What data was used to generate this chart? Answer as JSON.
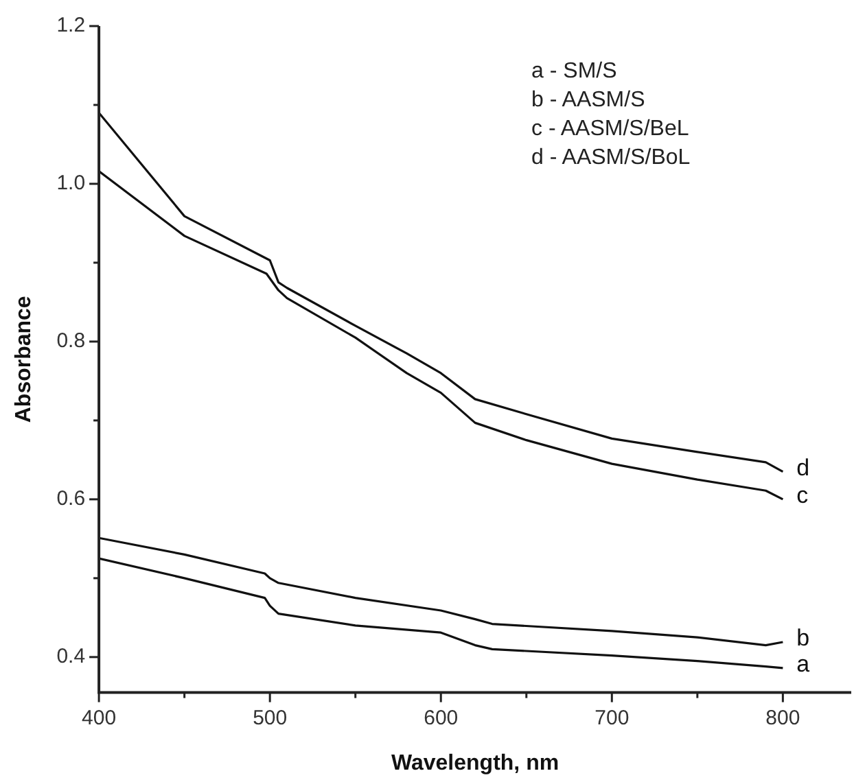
{
  "chart_data": {
    "type": "line",
    "xlabel": "Wavelength, nm",
    "ylabel": "Absorbance",
    "xlim": [
      400,
      840
    ],
    "xticks": [
      400,
      {
        "value": 450,
        "label": null
      },
      500,
      {
        "value": 550,
        "label": null
      },
      600,
      {
        "value": 650,
        "label": null
      },
      700,
      {
        "value": 750,
        "label": null
      },
      800
    ],
    "ylim": [
      0.355,
      1.2
    ],
    "yticks": [
      0.4,
      {
        "value": 0.5,
        "label": null
      },
      0.6,
      {
        "value": 0.7,
        "label": null
      },
      0.8,
      {
        "value": 0.9,
        "label": null
      },
      {
        "value": 1,
        "label": "1.0"
      },
      {
        "value": 1.1,
        "label": null
      },
      1.2
    ],
    "grid": false,
    "marker": "none",
    "line_style": "solid",
    "series": [
      {
        "name": "a",
        "color": "#111111",
        "x": [
          400,
          450,
          497,
          500,
          505,
          550,
          600,
          620,
          630,
          700,
          750,
          790,
          800
        ],
        "values": [
          0.525,
          0.5,
          0.475,
          0.465,
          0.455,
          0.44,
          0.431,
          0.415,
          0.41,
          0.402,
          0.395,
          0.388,
          0.386
        ]
      },
      {
        "name": "b",
        "color": "#111111",
        "x": [
          400,
          450,
          497,
          500,
          505,
          550,
          600,
          620,
          630,
          700,
          750,
          790,
          800
        ],
        "values": [
          0.551,
          0.53,
          0.506,
          0.5,
          0.494,
          0.475,
          0.459,
          0.448,
          0.442,
          0.433,
          0.425,
          0.415,
          0.419
        ]
      },
      {
        "name": "c",
        "color": "#111111",
        "x": [
          400,
          450,
          498,
          505,
          510,
          550,
          580,
          600,
          620,
          650,
          700,
          750,
          790,
          800
        ],
        "values": [
          1.016,
          0.934,
          0.886,
          0.865,
          0.855,
          0.805,
          0.76,
          0.735,
          0.697,
          0.675,
          0.645,
          0.625,
          0.611,
          0.6
        ]
      },
      {
        "name": "d",
        "color": "#111111",
        "x": [
          400,
          450,
          500,
          505,
          510,
          550,
          580,
          600,
          620,
          650,
          700,
          750,
          790,
          800
        ],
        "values": [
          1.09,
          0.959,
          0.903,
          0.875,
          0.868,
          0.82,
          0.785,
          0.76,
          0.727,
          0.708,
          0.677,
          0.66,
          0.647,
          0.635
        ]
      }
    ],
    "annotations": [
      "a - SM/S",
      "b - AASM/S",
      "c - AASM/S/BeL",
      "d - AASM/S/BoL"
    ]
  }
}
